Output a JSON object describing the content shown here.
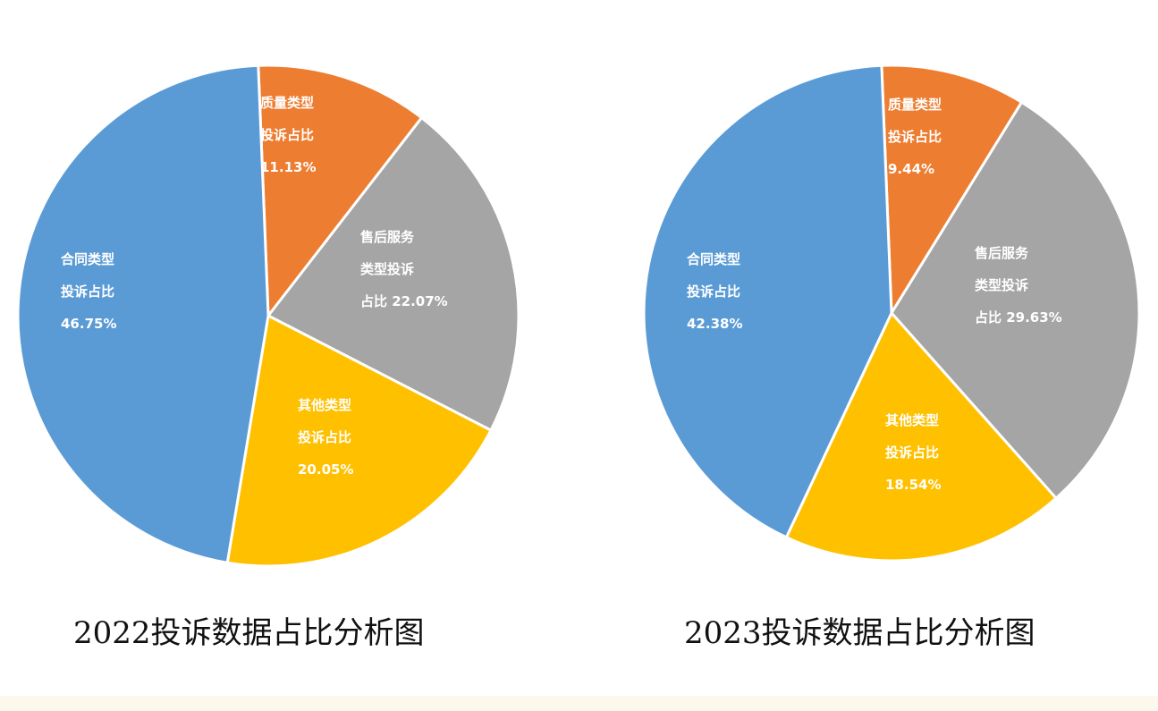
{
  "colors": {
    "contract": "#5b9bd5",
    "quality": "#ed7d31",
    "after_sales": "#a5a5a5",
    "other": "#ffc000",
    "label_text": "#ffffff",
    "slice_border": "#ffffff",
    "bottom_band": "#fdf8ec"
  },
  "chart_data": [
    {
      "type": "pie",
      "title": "2022投诉数据占比分析图",
      "slices": [
        {
          "key": "quality",
          "label_lines": [
            "质量类型",
            "投诉占比",
            "11.13%"
          ],
          "value": 11.13,
          "color": "#ed7d31"
        },
        {
          "key": "after_sales",
          "label_lines": [
            "售后服务",
            "类型投诉",
            "占比 22.07%"
          ],
          "value": 22.07,
          "color": "#a5a5a5"
        },
        {
          "key": "other",
          "label_lines": [
            "其他类型",
            "投诉占比",
            "20.05%"
          ],
          "value": 20.05,
          "color": "#ffc000"
        },
        {
          "key": "contract",
          "label_lines": [
            "合同类型",
            "投诉占比",
            "46.75%"
          ],
          "value": 46.75,
          "color": "#5b9bd5"
        }
      ]
    },
    {
      "type": "pie",
      "title": "2023投诉数据占比分析图",
      "slices": [
        {
          "key": "quality",
          "label_lines": [
            "质量类型",
            "投诉占比",
            "9.44%"
          ],
          "value": 9.44,
          "color": "#ed7d31"
        },
        {
          "key": "after_sales",
          "label_lines": [
            "售后服务",
            "类型投诉",
            "占比 29.63%"
          ],
          "value": 29.63,
          "color": "#a5a5a5"
        },
        {
          "key": "other",
          "label_lines": [
            "其他类型",
            "投诉占比",
            "18.54%"
          ],
          "value": 18.54,
          "color": "#ffc000"
        },
        {
          "key": "contract",
          "label_lines": [
            "合同类型",
            "投诉占比",
            "42.38%"
          ],
          "value": 42.38,
          "color": "#5b9bd5"
        }
      ]
    }
  ]
}
